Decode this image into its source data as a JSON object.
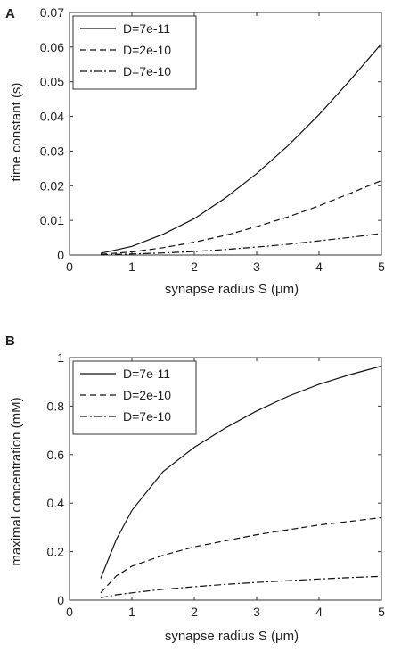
{
  "chart_data": [
    {
      "panel": "A",
      "type": "line",
      "xlabel": "synapse radius S (μm)",
      "ylabel": "time constant (s)",
      "xlim": [
        0,
        5
      ],
      "ylim": [
        0,
        0.07
      ],
      "xticks": [
        "0",
        "1",
        "2",
        "3",
        "4",
        "5"
      ],
      "yticks": [
        "0",
        "0.01",
        "0.02",
        "0.03",
        "0.04",
        "0.05",
        "0.06",
        "0.07"
      ],
      "legend_position": "top-left",
      "series": [
        {
          "name": "D=7e-11",
          "style": "solid",
          "x": [
            0.5,
            1.0,
            1.5,
            2.0,
            2.5,
            3.0,
            3.5,
            4.0,
            4.5,
            5.0
          ],
          "y": [
            0.0005,
            0.0025,
            0.006,
            0.0105,
            0.0165,
            0.0235,
            0.0315,
            0.0405,
            0.0505,
            0.061
          ]
        },
        {
          "name": "D=2e-10",
          "style": "dashed",
          "x": [
            0.5,
            1.0,
            1.5,
            2.0,
            2.5,
            3.0,
            3.5,
            4.0,
            4.5,
            5.0
          ],
          "y": [
            0.0002,
            0.0009,
            0.0021,
            0.0037,
            0.0057,
            0.0082,
            0.011,
            0.0142,
            0.0178,
            0.0215
          ]
        },
        {
          "name": "D=7e-10",
          "style": "dashdot",
          "x": [
            0.5,
            1.0,
            1.5,
            2.0,
            2.5,
            3.0,
            3.5,
            4.0,
            4.5,
            5.0
          ],
          "y": [
            0.0001,
            0.0003,
            0.0006,
            0.001,
            0.0016,
            0.0023,
            0.0031,
            0.0041,
            0.0051,
            0.0062
          ]
        }
      ]
    },
    {
      "panel": "B",
      "type": "line",
      "xlabel": "synapse radius S (μm)",
      "ylabel": "maximal concentration (mM)",
      "xlim": [
        0,
        5
      ],
      "ylim": [
        0,
        1
      ],
      "xticks": [
        "0",
        "1",
        "2",
        "3",
        "4",
        "5"
      ],
      "yticks": [
        "0",
        "0.2",
        "0.4",
        "0.6",
        "0.8",
        "1"
      ],
      "legend_position": "top-left",
      "series": [
        {
          "name": "D=7e-11",
          "style": "solid",
          "x": [
            0.5,
            0.75,
            1.0,
            1.5,
            2.0,
            2.5,
            3.0,
            3.5,
            4.0,
            4.5,
            5.0
          ],
          "y": [
            0.09,
            0.25,
            0.37,
            0.53,
            0.63,
            0.71,
            0.78,
            0.84,
            0.89,
            0.93,
            0.965
          ]
        },
        {
          "name": "D=2e-10",
          "style": "dashed",
          "x": [
            0.5,
            0.75,
            1.0,
            1.5,
            2.0,
            2.5,
            3.0,
            3.5,
            4.0,
            4.5,
            5.0
          ],
          "y": [
            0.03,
            0.1,
            0.14,
            0.185,
            0.22,
            0.245,
            0.27,
            0.29,
            0.31,
            0.325,
            0.34
          ]
        },
        {
          "name": "D=7e-10",
          "style": "dashdot",
          "x": [
            0.5,
            0.75,
            1.0,
            1.5,
            2.0,
            2.5,
            3.0,
            3.5,
            4.0,
            4.5,
            5.0
          ],
          "y": [
            0.01,
            0.022,
            0.03,
            0.045,
            0.055,
            0.065,
            0.073,
            0.08,
            0.087,
            0.093,
            0.098
          ]
        }
      ]
    }
  ],
  "colors": {
    "line": "#111111",
    "axis": "#333333"
  }
}
